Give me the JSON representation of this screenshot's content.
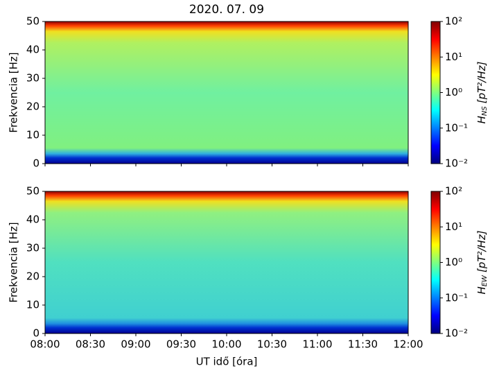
{
  "chart_data": [
    {
      "type": "spectrogram",
      "title": "2020. 07. 09",
      "ylabel": "Frekvencia [Hz]",
      "ylim": [
        0,
        50
      ],
      "yticks": [
        0,
        10,
        20,
        30,
        40,
        50
      ],
      "xlim": [
        8,
        12
      ],
      "xticks": [
        8,
        8.5,
        9,
        9.5,
        10,
        10.5,
        11,
        11.5,
        12
      ],
      "colormap": "jet",
      "colorbar": {
        "symbol": "H",
        "subscript": "NS",
        "unit": "[pT²/Hz]",
        "scale": "log",
        "lim": [
          0.01,
          100
        ],
        "ticks": [
          {
            "value": 0.01,
            "label": "10⁻²"
          },
          {
            "value": 0.1,
            "label": "10⁻¹"
          },
          {
            "value": 1,
            "label": "10⁰"
          },
          {
            "value": 10,
            "label": "10¹"
          },
          {
            "value": 100,
            "label": "10²"
          }
        ]
      }
    },
    {
      "type": "spectrogram",
      "ylabel": "Frekvencia [Hz]",
      "xlabel": "UT idő [óra]",
      "ylim": [
        0,
        50
      ],
      "yticks": [
        0,
        10,
        20,
        30,
        40,
        50
      ],
      "xlim": [
        8,
        12
      ],
      "xticks": [
        {
          "value": 8,
          "label": "08:00"
        },
        {
          "value": 8.5,
          "label": "08:30"
        },
        {
          "value": 9,
          "label": "09:00"
        },
        {
          "value": 9.5,
          "label": "09:30"
        },
        {
          "value": 10,
          "label": "10:00"
        },
        {
          "value": 10.5,
          "label": "10:30"
        },
        {
          "value": 11,
          "label": "11:00"
        },
        {
          "value": 11.5,
          "label": "11:30"
        },
        {
          "value": 12,
          "label": "12:00"
        }
      ],
      "colormap": "jet",
      "colorbar": {
        "symbol": "H",
        "subscript": "EW",
        "unit": "[pT²/Hz]",
        "scale": "log",
        "lim": [
          0.01,
          100
        ],
        "ticks": [
          {
            "value": 0.01,
            "label": "10⁻²"
          },
          {
            "value": 0.1,
            "label": "10⁻¹"
          },
          {
            "value": 1,
            "label": "10⁰"
          },
          {
            "value": 10,
            "label": "10¹"
          },
          {
            "value": 100,
            "label": "10²"
          }
        ]
      }
    }
  ]
}
